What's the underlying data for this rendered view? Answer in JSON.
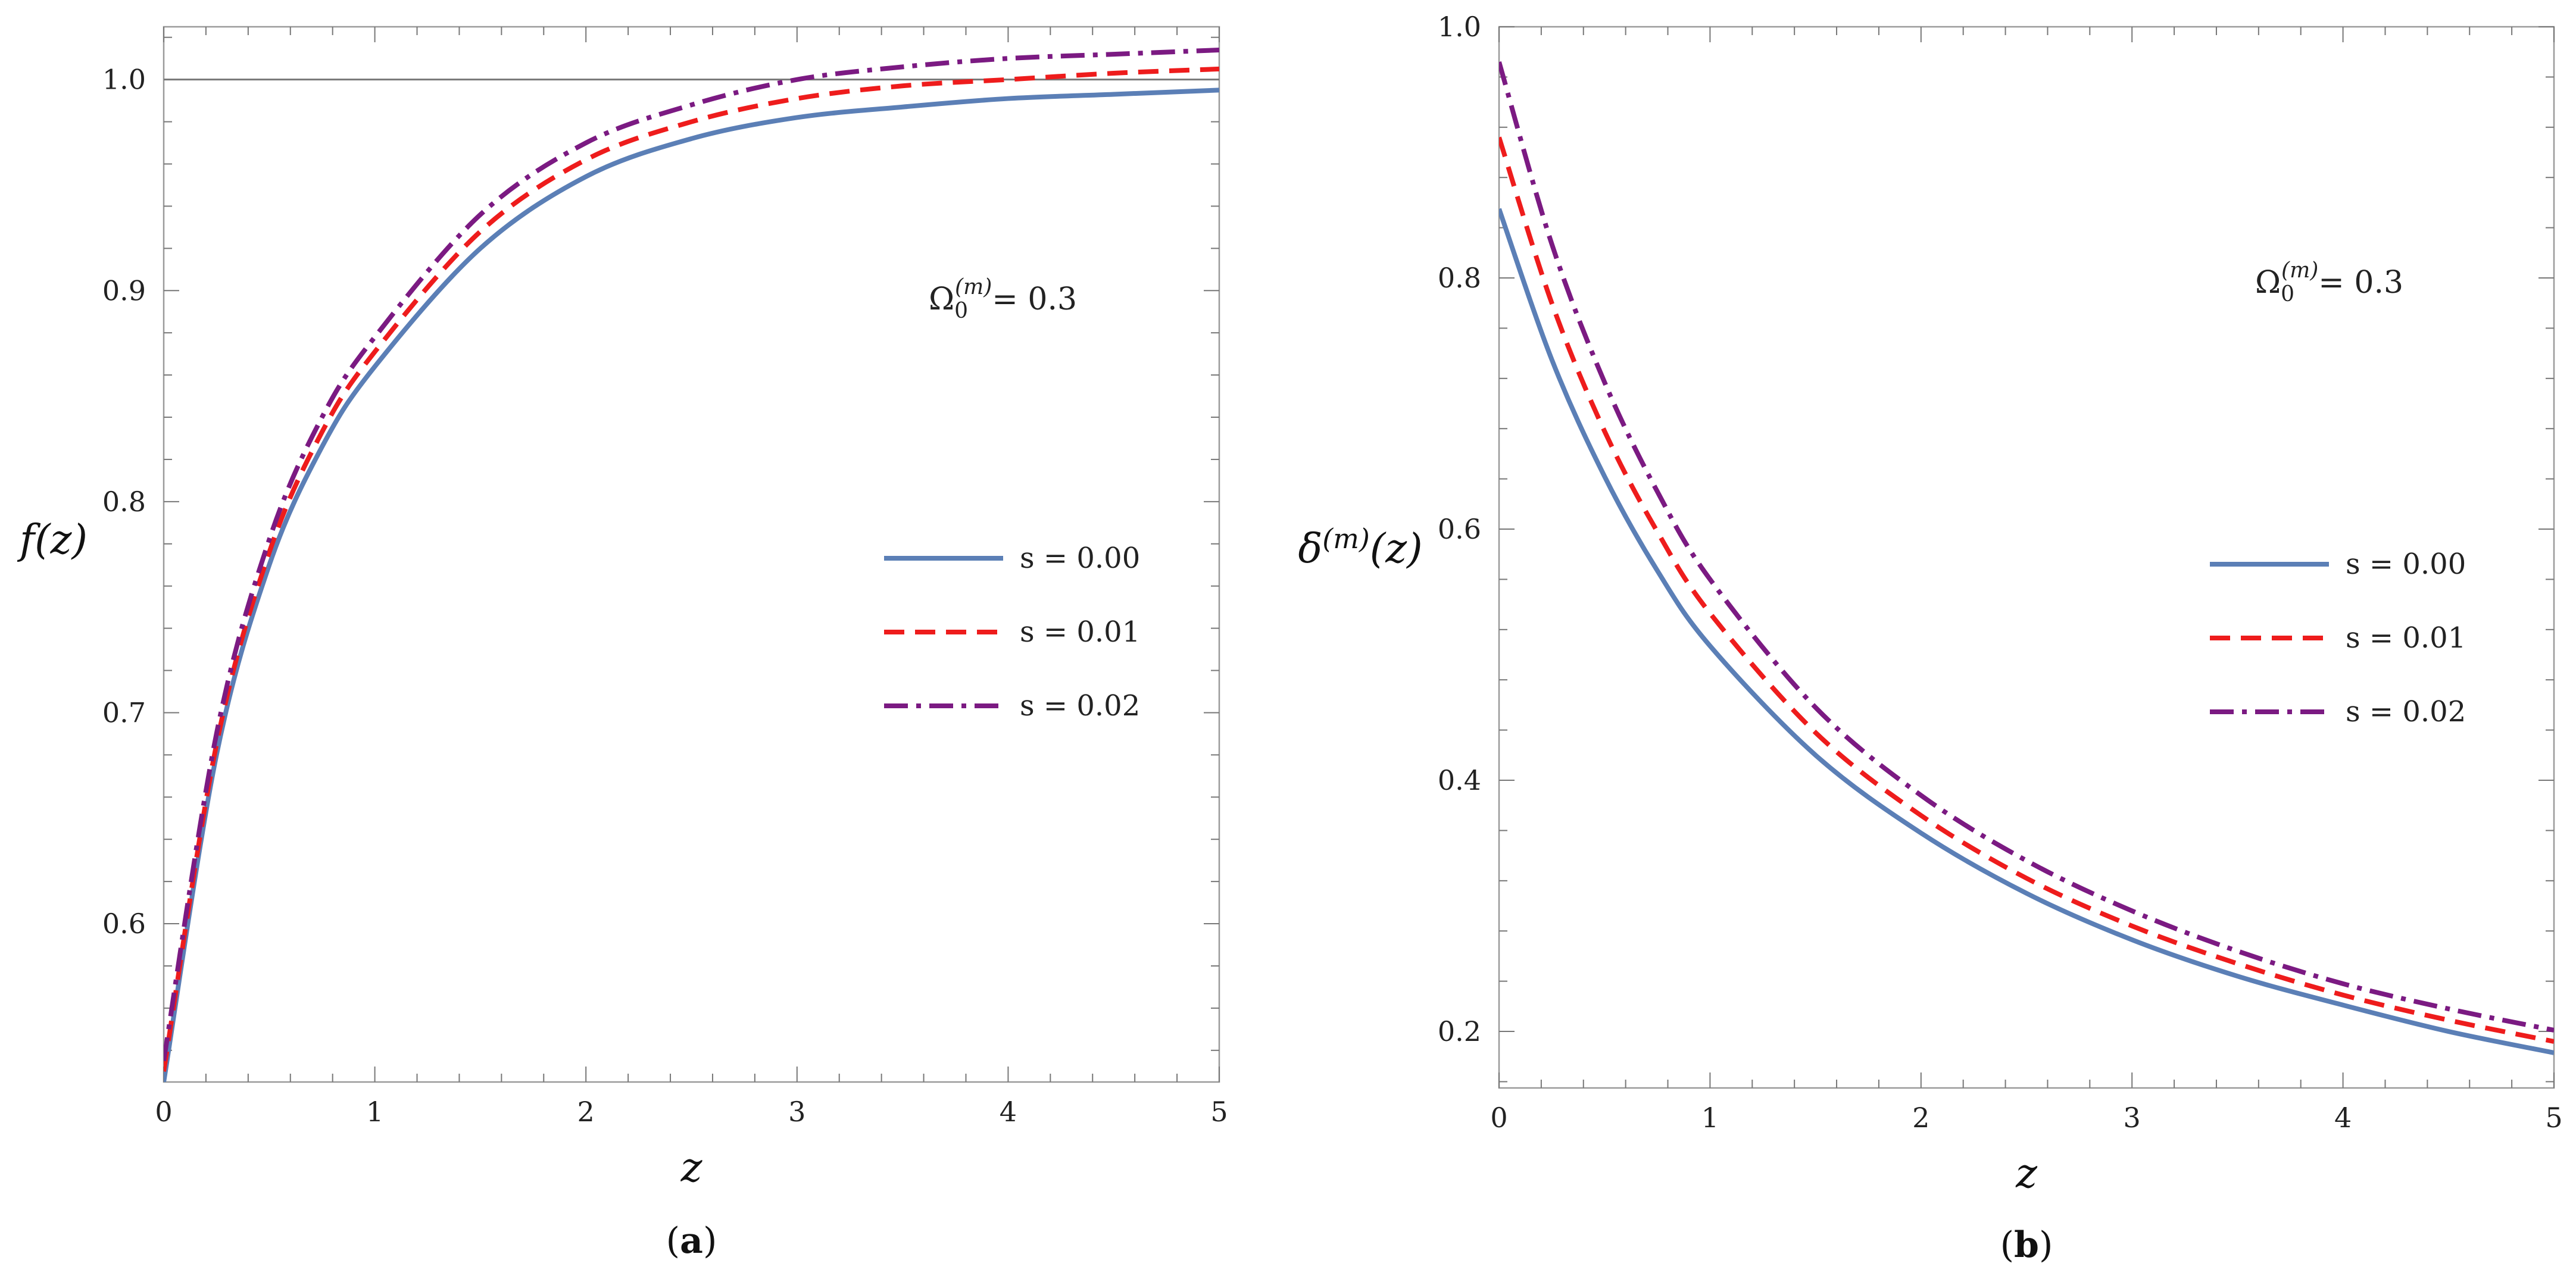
{
  "colors": {
    "series": [
      "#5b7fb6",
      "#ee1c1c",
      "#7b1a82"
    ],
    "frame": "#9a9a9a",
    "refline": "#777777"
  },
  "chart_data": [
    {
      "type": "line",
      "panel_label": "(a)",
      "panel_letter": "a",
      "xlabel": "z",
      "ylabel": "f(z)",
      "xlim": [
        0,
        5
      ],
      "ylim": [
        0.525,
        1.025
      ],
      "xticks": [
        0,
        1,
        2,
        3,
        4,
        5
      ],
      "yticks": [
        0.6,
        0.7,
        0.8,
        0.9,
        1.0
      ],
      "ytick_labels": [
        "0.6",
        "0.7",
        "0.8",
        "0.9",
        "1.0"
      ],
      "annotation": {
        "symbol": "Ω",
        "sub": "0",
        "sup": "(m)",
        "text": "= 0.3"
      },
      "refline_y": 1.0,
      "legend": [
        "s = 0.00",
        "s = 0.01",
        "s = 0.02"
      ],
      "x": [
        0,
        0.25,
        0.5,
        0.75,
        1,
        1.5,
        2,
        2.5,
        3,
        3.5,
        4,
        4.5,
        5
      ],
      "series": [
        {
          "name": "s = 0.00",
          "values": [
            0.525,
            0.68,
            0.77,
            0.826,
            0.864,
            0.92,
            0.954,
            0.972,
            0.982,
            0.987,
            0.991,
            0.993,
            0.995
          ]
        },
        {
          "name": "s = 0.01",
          "values": [
            0.53,
            0.685,
            0.776,
            0.833,
            0.871,
            0.928,
            0.962,
            0.98,
            0.991,
            0.997,
            1.0,
            1.003,
            1.005
          ]
        },
        {
          "name": "s = 0.02",
          "values": [
            0.535,
            0.69,
            0.782,
            0.84,
            0.878,
            0.936,
            0.97,
            0.988,
            1.0,
            1.006,
            1.01,
            1.012,
            1.014
          ]
        }
      ]
    },
    {
      "type": "line",
      "panel_label": "(b)",
      "panel_letter": "b",
      "xlabel": "z",
      "ylabel": "δ(m)(z)",
      "xlim": [
        0,
        5
      ],
      "ylim": [
        0.155,
        1.0
      ],
      "xticks": [
        0,
        1,
        2,
        3,
        4,
        5
      ],
      "yticks": [
        0.2,
        0.4,
        0.6,
        0.8,
        1.0
      ],
      "ytick_labels": [
        "0.2",
        "0.4",
        "0.6",
        "0.8",
        "1.0"
      ],
      "annotation": {
        "symbol": "Ω",
        "sub": "0",
        "sup": "(m)",
        "text": "= 0.3"
      },
      "legend": [
        "s = 0.00",
        "s = 0.01",
        "s = 0.02"
      ],
      "x": [
        0,
        0.25,
        0.5,
        0.75,
        1,
        1.5,
        2,
        2.5,
        3,
        3.5,
        4,
        4.5,
        5
      ],
      "series": [
        {
          "name": "s = 0.00",
          "values": [
            0.855,
            0.735,
            0.642,
            0.567,
            0.507,
            0.42,
            0.358,
            0.31,
            0.273,
            0.244,
            0.221,
            0.2,
            0.183
          ]
        },
        {
          "name": "s = 0.01",
          "values": [
            0.912,
            0.78,
            0.678,
            0.598,
            0.533,
            0.438,
            0.372,
            0.322,
            0.284,
            0.254,
            0.229,
            0.209,
            0.192
          ]
        },
        {
          "name": "s = 0.02",
          "values": [
            0.972,
            0.827,
            0.717,
            0.63,
            0.56,
            0.458,
            0.388,
            0.336,
            0.296,
            0.264,
            0.238,
            0.218,
            0.201
          ]
        }
      ]
    }
  ]
}
